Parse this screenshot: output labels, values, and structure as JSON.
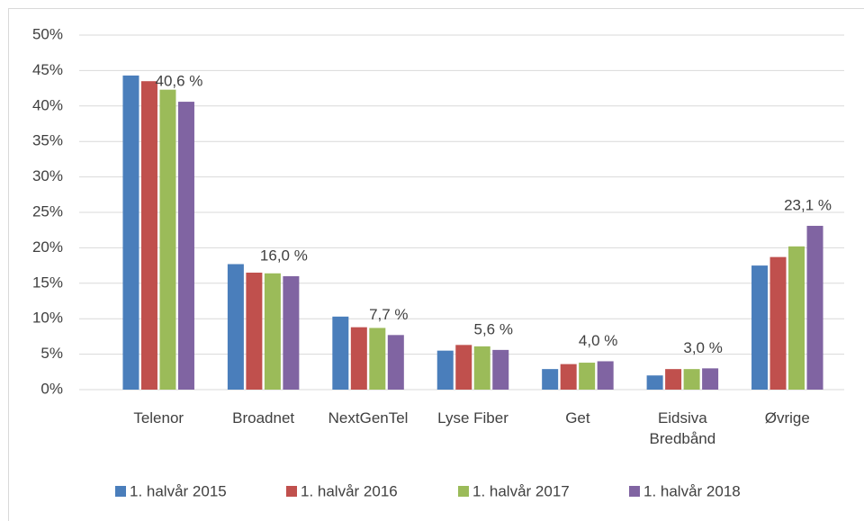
{
  "chart_data": {
    "type": "bar",
    "categories": [
      "Telenor",
      "Broadnet",
      "NextGenTel",
      "Lyse Fiber",
      "Get",
      "Eidsiva Bredbånd",
      "Øvrige"
    ],
    "series": [
      {
        "name": "1. halvår 2015",
        "color": "#4a7ebb",
        "values": [
          44.3,
          17.7,
          10.3,
          5.5,
          2.9,
          2.0,
          17.5
        ]
      },
      {
        "name": "1. halvår 2016",
        "color": "#c0504d",
        "values": [
          43.5,
          16.5,
          8.8,
          6.3,
          3.6,
          2.9,
          18.7
        ]
      },
      {
        "name": "1. halvår 2017",
        "color": "#9bbb59",
        "values": [
          42.3,
          16.4,
          8.7,
          6.1,
          3.8,
          2.9,
          20.2
        ]
      },
      {
        "name": "1. halvår 2018",
        "color": "#8064a2",
        "values": [
          40.6,
          16.0,
          7.7,
          5.6,
          4.0,
          3.0,
          23.1
        ],
        "value_labels": [
          "40,6 %",
          "16,0 %",
          "7,7 %",
          "5,6 %",
          "4,0 %",
          "3,0 %",
          "23,1 %"
        ]
      }
    ],
    "ylim": [
      0,
      50
    ],
    "yticks": [
      {
        "value": 0,
        "label": "0%"
      },
      {
        "value": 5,
        "label": "5%"
      },
      {
        "value": 10,
        "label": "10%"
      },
      {
        "value": 15,
        "label": "15%"
      },
      {
        "value": 20,
        "label": "20%"
      },
      {
        "value": 25,
        "label": "25%"
      },
      {
        "value": 30,
        "label": "30%"
      },
      {
        "value": 35,
        "label": "35%"
      },
      {
        "value": 40,
        "label": "40%"
      },
      {
        "value": 45,
        "label": "45%"
      },
      {
        "value": 50,
        "label": "50%"
      }
    ],
    "grid": true,
    "legend": "bottom"
  }
}
